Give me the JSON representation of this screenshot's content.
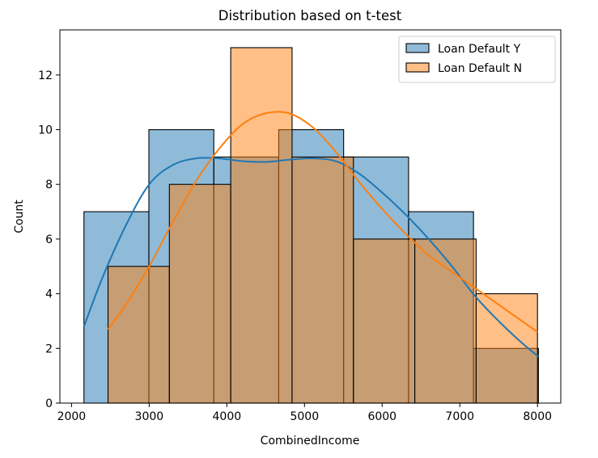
{
  "chart_data": {
    "type": "histogram",
    "title": "Distribution based on t-test",
    "xlabel": "CombinedIncome",
    "ylabel": "Count",
    "xlim": [
      1850,
      8300
    ],
    "ylim": [
      0,
      13.65
    ],
    "xticks": [
      2000,
      3000,
      4000,
      5000,
      6000,
      7000,
      8000
    ],
    "yticks": [
      0,
      2,
      4,
      6,
      8,
      10,
      12
    ],
    "grid": false,
    "legend_position": "top-right",
    "series": [
      {
        "name": "Loan Default Y",
        "color": "#1f77b4",
        "bin_edges": [
          2160,
          2996,
          3832,
          4668,
          5504,
          6340,
          7176,
          8012
        ],
        "counts": [
          7,
          10,
          9,
          10,
          9,
          7,
          2
        ],
        "kde": [
          [
            2160,
            2.8
          ],
          [
            2400,
            4.6
          ],
          [
            2700,
            6.5
          ],
          [
            3000,
            8.0
          ],
          [
            3300,
            8.7
          ],
          [
            3600,
            8.95
          ],
          [
            3900,
            8.95
          ],
          [
            4200,
            8.85
          ],
          [
            4500,
            8.82
          ],
          [
            4800,
            8.9
          ],
          [
            5100,
            8.95
          ],
          [
            5400,
            8.85
          ],
          [
            5700,
            8.4
          ],
          [
            6000,
            7.7
          ],
          [
            6300,
            6.9
          ],
          [
            6600,
            6.0
          ],
          [
            6900,
            5.0
          ],
          [
            7200,
            3.9
          ],
          [
            7500,
            3.0
          ],
          [
            7800,
            2.2
          ],
          [
            8012,
            1.7
          ]
        ]
      },
      {
        "name": "Loan Default N",
        "color": "#ff7f0e",
        "bin_edges": [
          2470,
          3260,
          4050,
          4840,
          5630,
          6420,
          7210,
          8000
        ],
        "counts": [
          5,
          8,
          13,
          9,
          6,
          6,
          4
        ],
        "kde": [
          [
            2470,
            2.7
          ],
          [
            2700,
            3.6
          ],
          [
            3000,
            5.0
          ],
          [
            3300,
            6.6
          ],
          [
            3600,
            8.1
          ],
          [
            3900,
            9.3
          ],
          [
            4200,
            10.2
          ],
          [
            4500,
            10.6
          ],
          [
            4800,
            10.6
          ],
          [
            5100,
            10.1
          ],
          [
            5400,
            9.2
          ],
          [
            5700,
            8.1
          ],
          [
            6000,
            7.1
          ],
          [
            6300,
            6.2
          ],
          [
            6600,
            5.4
          ],
          [
            6900,
            4.8
          ],
          [
            7200,
            4.2
          ],
          [
            7500,
            3.6
          ],
          [
            7800,
            3.0
          ],
          [
            8000,
            2.6
          ]
        ]
      }
    ]
  }
}
